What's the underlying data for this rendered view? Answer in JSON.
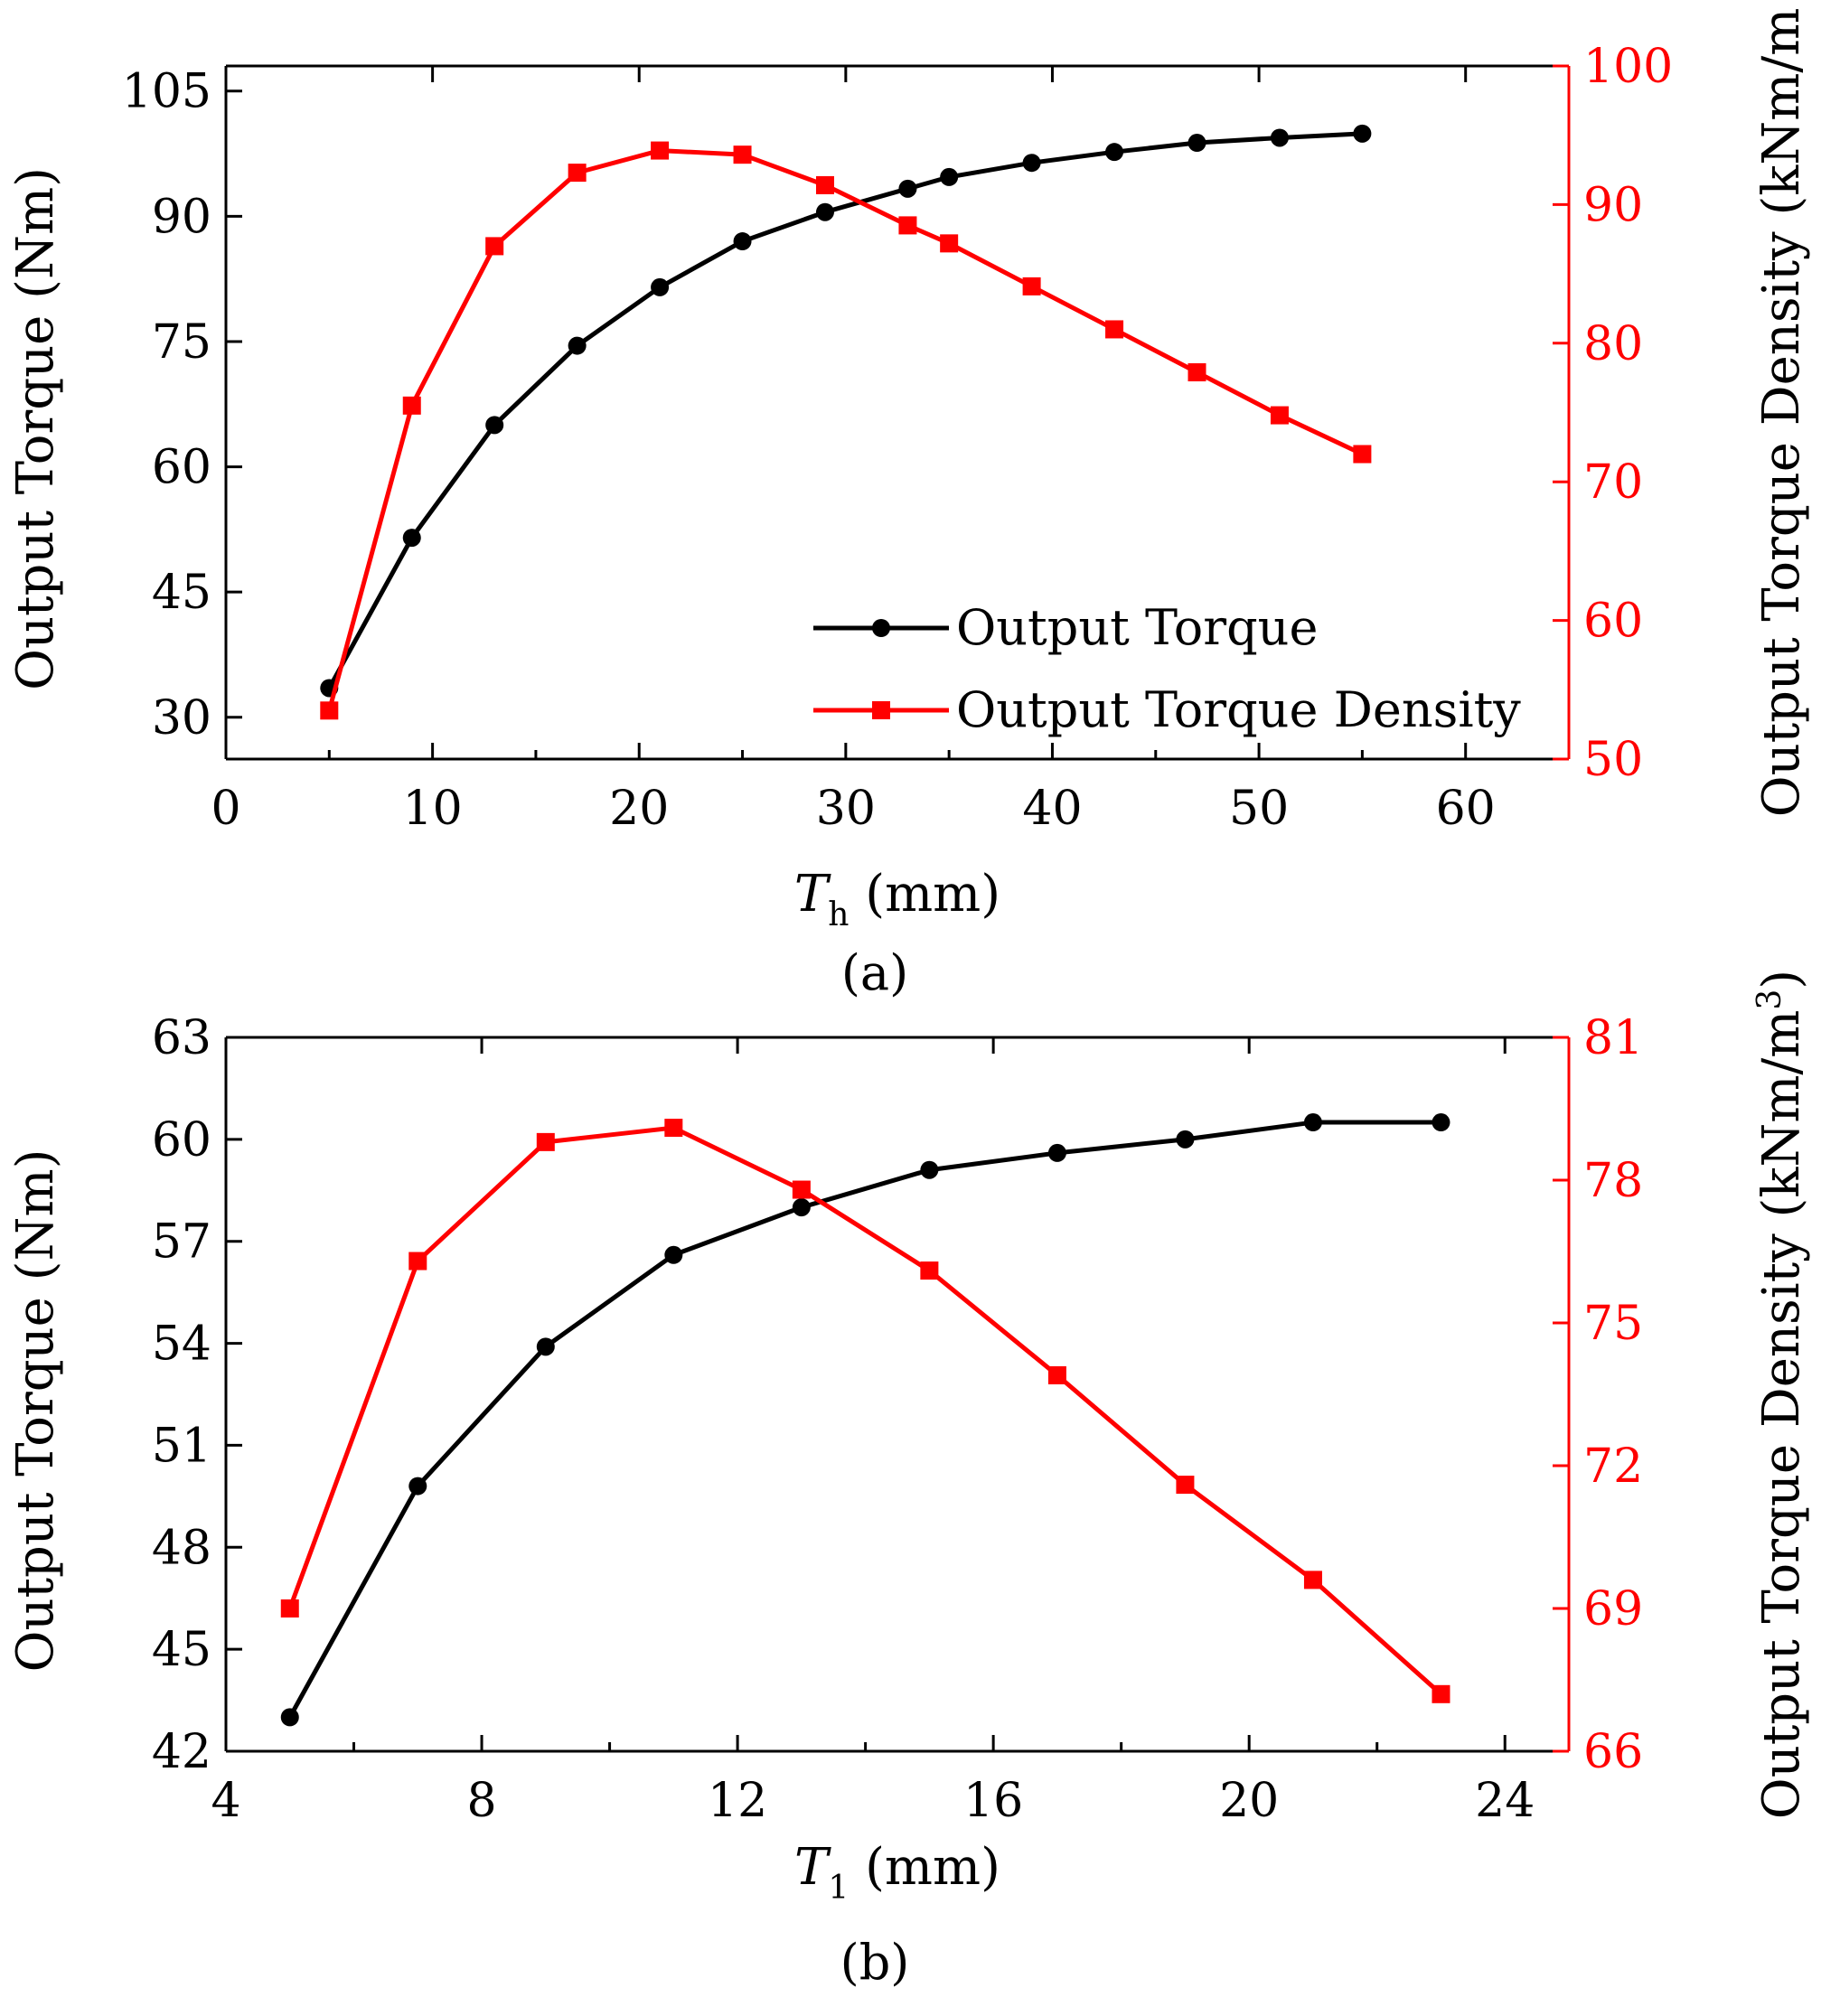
{
  "chart_data": [
    {
      "type": "line",
      "panel_label": "(a)",
      "xlabel": {
        "symbol": "T",
        "subscript": "h",
        "unit": " (mm)"
      },
      "ylabel": "Output Torque (Nm)",
      "y2label": "Output Torque Density (kNm/m",
      "y2label_superscript": "",
      "xlim": [
        0,
        65
      ],
      "ylim": [
        25,
        108
      ],
      "y2lim": [
        50,
        100
      ],
      "xticks": [
        0,
        10,
        20,
        30,
        40,
        50,
        60
      ],
      "yticks": [
        30,
        45,
        60,
        75,
        90,
        105
      ],
      "y2ticks": [
        50,
        60,
        70,
        80,
        90,
        100
      ],
      "legend": {
        "position": "bottom-right",
        "entries": [
          "Output Torque",
          "Output Torque Density"
        ]
      },
      "series": [
        {
          "name": "Output Torque",
          "axis": "left",
          "color": "#000000",
          "marker": "circle",
          "x": [
            5,
            9,
            13,
            17,
            21,
            25,
            29,
            33,
            35,
            39,
            43,
            47,
            51,
            55
          ],
          "y": [
            33.5,
            51.5,
            65,
            74.5,
            81.5,
            87,
            90.5,
            93.3,
            94.7,
            96.4,
            97.7,
            98.8,
            99.4,
            99.9
          ]
        },
        {
          "name": "Output Torque Density",
          "axis": "right",
          "color": "#ff0000",
          "marker": "square",
          "x": [
            5,
            9,
            13,
            17,
            21,
            25,
            29,
            33,
            35,
            39,
            43,
            47,
            51,
            55
          ],
          "y": [
            53.5,
            75.5,
            87,
            92.3,
            93.9,
            93.6,
            91.4,
            88.5,
            87.2,
            84.1,
            81.0,
            77.9,
            74.8,
            72.0
          ]
        }
      ]
    },
    {
      "type": "line",
      "panel_label": "(b)",
      "xlabel": {
        "symbol": "T",
        "subscript": "1",
        "unit": " (mm)"
      },
      "ylabel": "Output Torque (Nm)",
      "y2label": "Output Torque Density (kNm/m",
      "y2label_superscript": "3",
      "y2label_tail": ")",
      "xlim": [
        4,
        25
      ],
      "ylim": [
        42,
        63
      ],
      "y2lim": [
        66,
        81
      ],
      "xticks": [
        4,
        8,
        12,
        16,
        20,
        24
      ],
      "yticks": [
        42,
        45,
        48,
        51,
        54,
        57,
        60,
        63
      ],
      "y2ticks": [
        66,
        69,
        72,
        75,
        78,
        81
      ],
      "series": [
        {
          "name": "Output Torque",
          "axis": "left",
          "color": "#000000",
          "marker": "circle",
          "x": [
            5,
            7,
            9,
            11,
            13,
            15,
            17,
            19,
            21,
            23
          ],
          "y": [
            43.0,
            49.8,
            53.9,
            56.6,
            58.0,
            59.1,
            59.6,
            60.0,
            60.5,
            60.5
          ]
        },
        {
          "name": "Output Torque Density",
          "axis": "right",
          "color": "#ff0000",
          "marker": "square",
          "x": [
            5,
            7,
            9,
            11,
            13,
            15,
            17,
            19,
            21,
            23
          ],
          "y": [
            69.0,
            76.3,
            78.8,
            79.1,
            77.8,
            76.1,
            73.9,
            71.6,
            69.6,
            67.2
          ]
        }
      ]
    }
  ]
}
